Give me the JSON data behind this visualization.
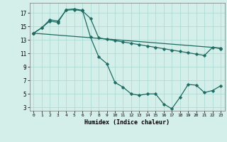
{
  "xlabel": "Humidex (Indice chaleur)",
  "bg_color": "#d4eeea",
  "grid_color": "#aad8d2",
  "line_color": "#1e6b62",
  "xlim": [
    -0.5,
    23.5
  ],
  "ylim": [
    2.5,
    18.5
  ],
  "xticks": [
    0,
    1,
    2,
    3,
    4,
    5,
    6,
    7,
    8,
    9,
    10,
    11,
    12,
    13,
    14,
    15,
    16,
    17,
    18,
    19,
    20,
    21,
    22,
    23
  ],
  "yticks": [
    3,
    5,
    7,
    9,
    11,
    13,
    15,
    17
  ],
  "l1x": [
    0,
    1,
    2,
    3,
    4,
    5,
    6,
    7,
    8,
    9,
    10,
    11,
    12,
    13,
    14,
    15,
    16,
    17,
    18,
    19,
    20,
    21,
    22,
    23
  ],
  "l1y": [
    14.0,
    14.8,
    15.8,
    15.6,
    17.5,
    17.6,
    17.4,
    13.4,
    10.5,
    9.5,
    6.7,
    6.0,
    5.0,
    4.8,
    5.0,
    5.0,
    3.5,
    2.8,
    4.5,
    6.4,
    6.3,
    5.2,
    5.5,
    6.2
  ],
  "l2x": [
    0,
    1,
    2,
    3,
    4,
    5,
    6,
    7,
    8,
    9,
    10,
    11,
    12,
    13,
    14,
    15,
    16,
    17,
    18,
    19,
    20,
    21,
    22,
    23
  ],
  "l2y": [
    14.0,
    14.8,
    16.0,
    15.8,
    17.4,
    17.5,
    17.3,
    16.2,
    13.3,
    13.1,
    12.9,
    12.7,
    12.5,
    12.3,
    12.1,
    11.9,
    11.7,
    11.5,
    11.3,
    11.1,
    10.9,
    10.7,
    11.9,
    11.7
  ],
  "l3x": [
    0,
    23
  ],
  "l3y": [
    14.0,
    11.8
  ]
}
